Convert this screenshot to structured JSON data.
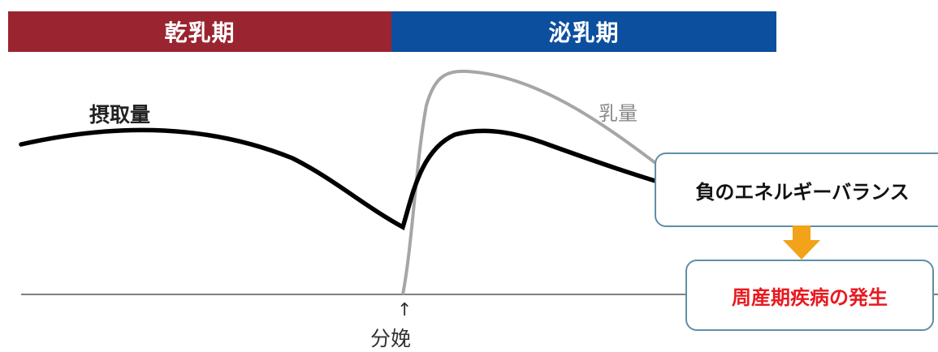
{
  "periods": {
    "dry": {
      "label": "乾乳期",
      "color": "#9a2530"
    },
    "lactation": {
      "label": "泌乳期",
      "color": "#0b4f9e"
    }
  },
  "curves": {
    "intake": {
      "label": "摂取量",
      "color": "#000000"
    },
    "milk": {
      "label": "乳量",
      "color": "#a6a6a6"
    }
  },
  "baseline": {
    "color": "#555555"
  },
  "calving": {
    "label": "分娩",
    "arrow": "↑"
  },
  "callouts": {
    "negative_energy_balance": {
      "label": "負のエネルギーバランス",
      "border_color": "#5f8fa6"
    },
    "disease_onset": {
      "label": "周産期疾病の発生",
      "text_color": "#e8191f",
      "border_color": "#5f8fa6"
    }
  },
  "arrow_color": "#f2a31a"
}
